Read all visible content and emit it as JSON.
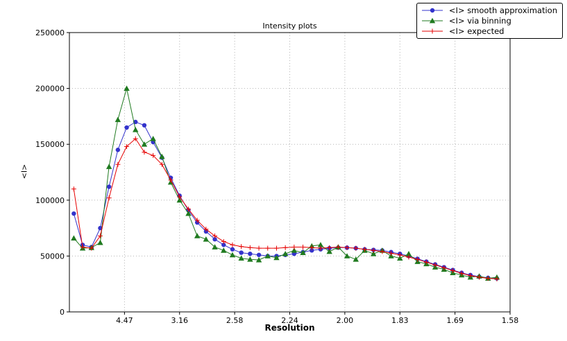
{
  "chart_data": {
    "type": "line",
    "title": "Intensity plots",
    "xlabel": "Resolution",
    "ylabel": "<I>",
    "xlim": [
      0,
      0.4
    ],
    "ylim": [
      0,
      250000
    ],
    "grid": true,
    "legend_position": "upper right",
    "axis_note": "x is linear in 1/d^2; tick labels show resolution d in Angstrom",
    "xticks": [
      {
        "value": 0.05,
        "label": "4.47"
      },
      {
        "value": 0.1,
        "label": "3.16"
      },
      {
        "value": 0.15,
        "label": "2.58"
      },
      {
        "value": 0.2,
        "label": "2.24"
      },
      {
        "value": 0.25,
        "label": "2.00"
      },
      {
        "value": 0.3,
        "label": "1.83"
      },
      {
        "value": 0.35,
        "label": "1.69"
      },
      {
        "value": 0.4,
        "label": "1.58"
      }
    ],
    "yticks": [
      {
        "value": 0,
        "label": "0"
      },
      {
        "value": 50000,
        "label": "50000"
      },
      {
        "value": 100000,
        "label": "100000"
      },
      {
        "value": 150000,
        "label": "150000"
      },
      {
        "value": 200000,
        "label": "200000"
      },
      {
        "value": 250000,
        "label": "250000"
      }
    ],
    "x": [
      0.004,
      0.012,
      0.02,
      0.028,
      0.036,
      0.044,
      0.052,
      0.06,
      0.068,
      0.076,
      0.084,
      0.092,
      0.1,
      0.108,
      0.116,
      0.124,
      0.132,
      0.14,
      0.148,
      0.156,
      0.164,
      0.172,
      0.18,
      0.188,
      0.196,
      0.204,
      0.212,
      0.22,
      0.228,
      0.236,
      0.244,
      0.252,
      0.26,
      0.268,
      0.276,
      0.284,
      0.292,
      0.3,
      0.308,
      0.316,
      0.324,
      0.332,
      0.34,
      0.348,
      0.356,
      0.364,
      0.372,
      0.38,
      0.388
    ],
    "series": [
      {
        "name": "<I> smooth approximation",
        "color": "#3333cc",
        "marker": "circle",
        "values": [
          88000,
          60000,
          58000,
          75000,
          112000,
          145000,
          165000,
          170000,
          167000,
          152000,
          138000,
          120000,
          104000,
          91000,
          80000,
          72000,
          65000,
          60000,
          56000,
          53000,
          52000,
          51000,
          50000,
          50000,
          51000,
          52000,
          53500,
          55000,
          56000,
          57000,
          57500,
          57500,
          57000,
          56000,
          55500,
          55000,
          53500,
          52000,
          50000,
          47500,
          45000,
          42500,
          40000,
          37500,
          35000,
          33000,
          31500,
          30500,
          30000
        ]
      },
      {
        "name": "<I> via binning",
        "color": "#1f7a1f",
        "marker": "triangle",
        "values": [
          66000,
          57000,
          57500,
          62000,
          130000,
          172000,
          200000,
          163000,
          150000,
          155000,
          139000,
          116000,
          100000,
          88000,
          68000,
          65000,
          58000,
          55000,
          51000,
          48000,
          47000,
          46500,
          50000,
          48500,
          52000,
          55000,
          53000,
          59000,
          60000,
          54000,
          58000,
          50000,
          47000,
          55000,
          52000,
          55000,
          50000,
          48000,
          52000,
          45000,
          43000,
          40000,
          38000,
          35000,
          33000,
          31000,
          32000,
          30000,
          31000
        ]
      },
      {
        "name": "<I> expected",
        "color": "#e60000",
        "marker": "plus",
        "values": [
          110000,
          58000,
          57000,
          68000,
          102000,
          132000,
          148000,
          155000,
          143000,
          140000,
          132000,
          118000,
          103000,
          92000,
          82000,
          74000,
          68000,
          63000,
          60000,
          58500,
          57500,
          57000,
          57000,
          57000,
          57500,
          58000,
          58000,
          57500,
          57000,
          57500,
          58000,
          57500,
          57000,
          56000,
          55000,
          54000,
          52500,
          51000,
          49000,
          47000,
          44500,
          42000,
          39500,
          37000,
          34500,
          32500,
          31000,
          30000,
          29500
        ]
      }
    ]
  }
}
